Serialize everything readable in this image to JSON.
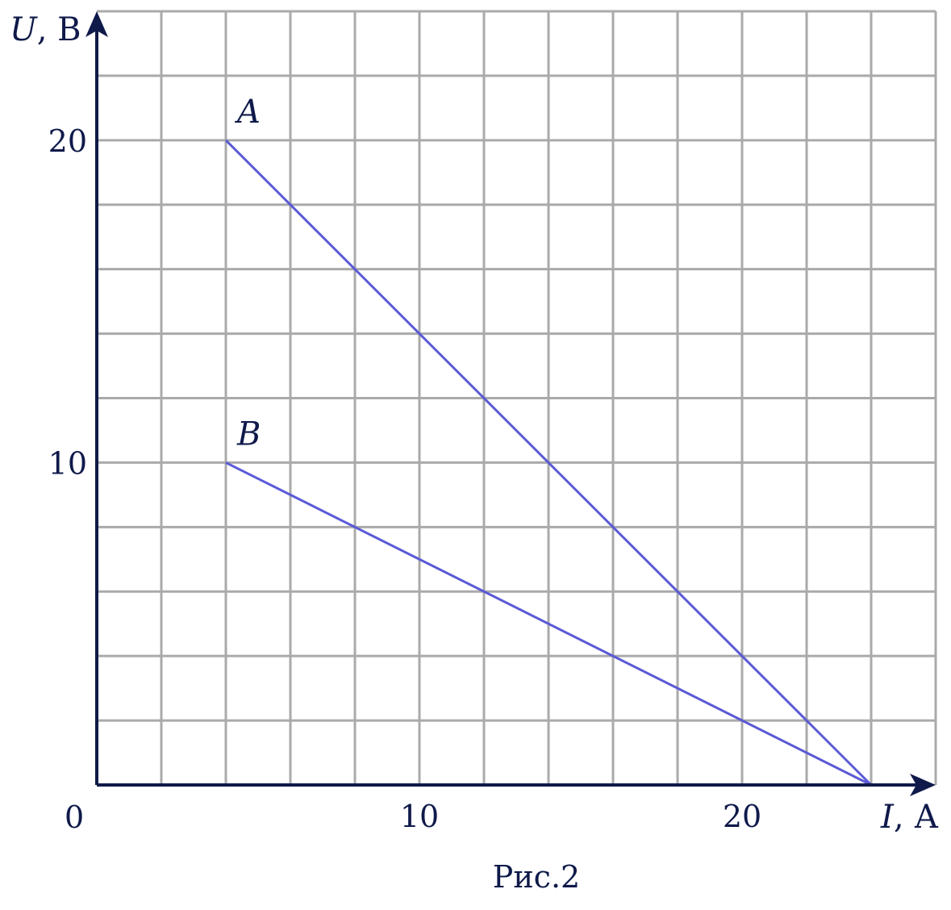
{
  "chart_data": {
    "type": "line",
    "x_axis": {
      "symbol": "I",
      "unit": ", А",
      "range": [
        0,
        26
      ],
      "grid_step": 2,
      "tick_labels": [
        10,
        20
      ]
    },
    "y_axis": {
      "symbol": "U",
      "unit": ", В",
      "range": [
        0,
        24
      ],
      "grid_step": 2,
      "tick_labels": [
        10,
        20
      ]
    },
    "origin_label": "0",
    "series": [
      {
        "name": "A",
        "points": [
          [
            4,
            20
          ],
          [
            24,
            0
          ]
        ]
      },
      {
        "name": "B",
        "points": [
          [
            4,
            10
          ],
          [
            24,
            0
          ]
        ]
      }
    ],
    "grid": true,
    "caption": "Рис.2",
    "colors": {
      "series": "#5a5ad6",
      "axis": "#0f1a4a",
      "grid": "#aaaaaa"
    }
  }
}
